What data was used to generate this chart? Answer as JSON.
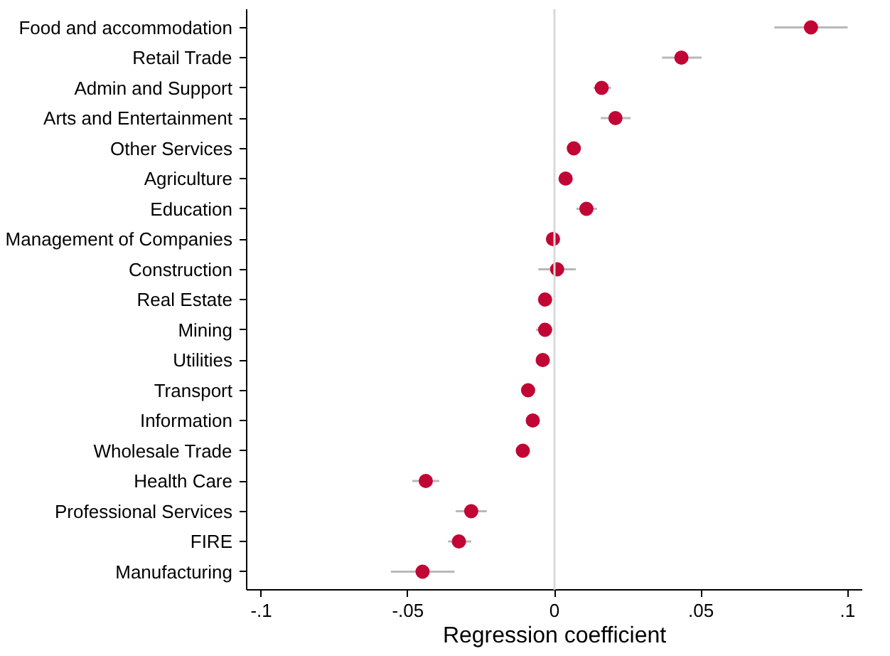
{
  "chart_data": {
    "type": "scatter",
    "orientation": "horizontal",
    "xlabel": "Regression coefficient",
    "categories": [
      "Food and accommodation",
      "Retail Trade",
      "Admin and Support",
      "Arts and Entertainment",
      "Other Services",
      "Agriculture",
      "Education",
      "Management of Companies",
      "Construction",
      "Real Estate",
      "Mining",
      "Utilities",
      "Transport",
      "Information",
      "Wholesale Trade",
      "Health Care",
      "Professional Services",
      "FIRE",
      "Manufacturing"
    ],
    "values": [
      0.0875,
      0.0433,
      0.0161,
      0.0208,
      0.0066,
      0.0038,
      0.0109,
      -0.0005,
      0.0009,
      -0.0032,
      -0.0032,
      -0.004,
      -0.009,
      -0.0074,
      -0.0108,
      -0.0439,
      -0.0284,
      -0.0326,
      -0.045
    ],
    "errors": [
      [
        0.075,
        0.1
      ],
      [
        0.0367,
        0.0502
      ],
      [
        0.0133,
        0.0193
      ],
      [
        0.0158,
        0.026
      ],
      null,
      null,
      [
        0.0075,
        0.0145
      ],
      null,
      [
        -0.0055,
        0.0073
      ],
      null,
      [
        -0.0063,
        -0.001
      ],
      null,
      null,
      null,
      null,
      [
        -0.0485,
        -0.0393
      ],
      [
        -0.0337,
        -0.0231
      ],
      [
        -0.0363,
        -0.0284
      ],
      [
        -0.0558,
        -0.0341
      ]
    ],
    "color": "#c10534",
    "marker": "circle",
    "grid": false,
    "xlim": [
      -0.105,
      0.105
    ],
    "xticks": [
      {
        "value": -0.1,
        "label": "-.1"
      },
      {
        "value": -0.05,
        "label": "-.05"
      },
      0,
      {
        "value": 0.05,
        "label": ".05"
      },
      {
        "value": 0.1,
        "label": ".1"
      }
    ],
    "ref_lines": [
      {
        "axis": "x",
        "value": 0,
        "color": "#d9d9d9"
      }
    ]
  }
}
